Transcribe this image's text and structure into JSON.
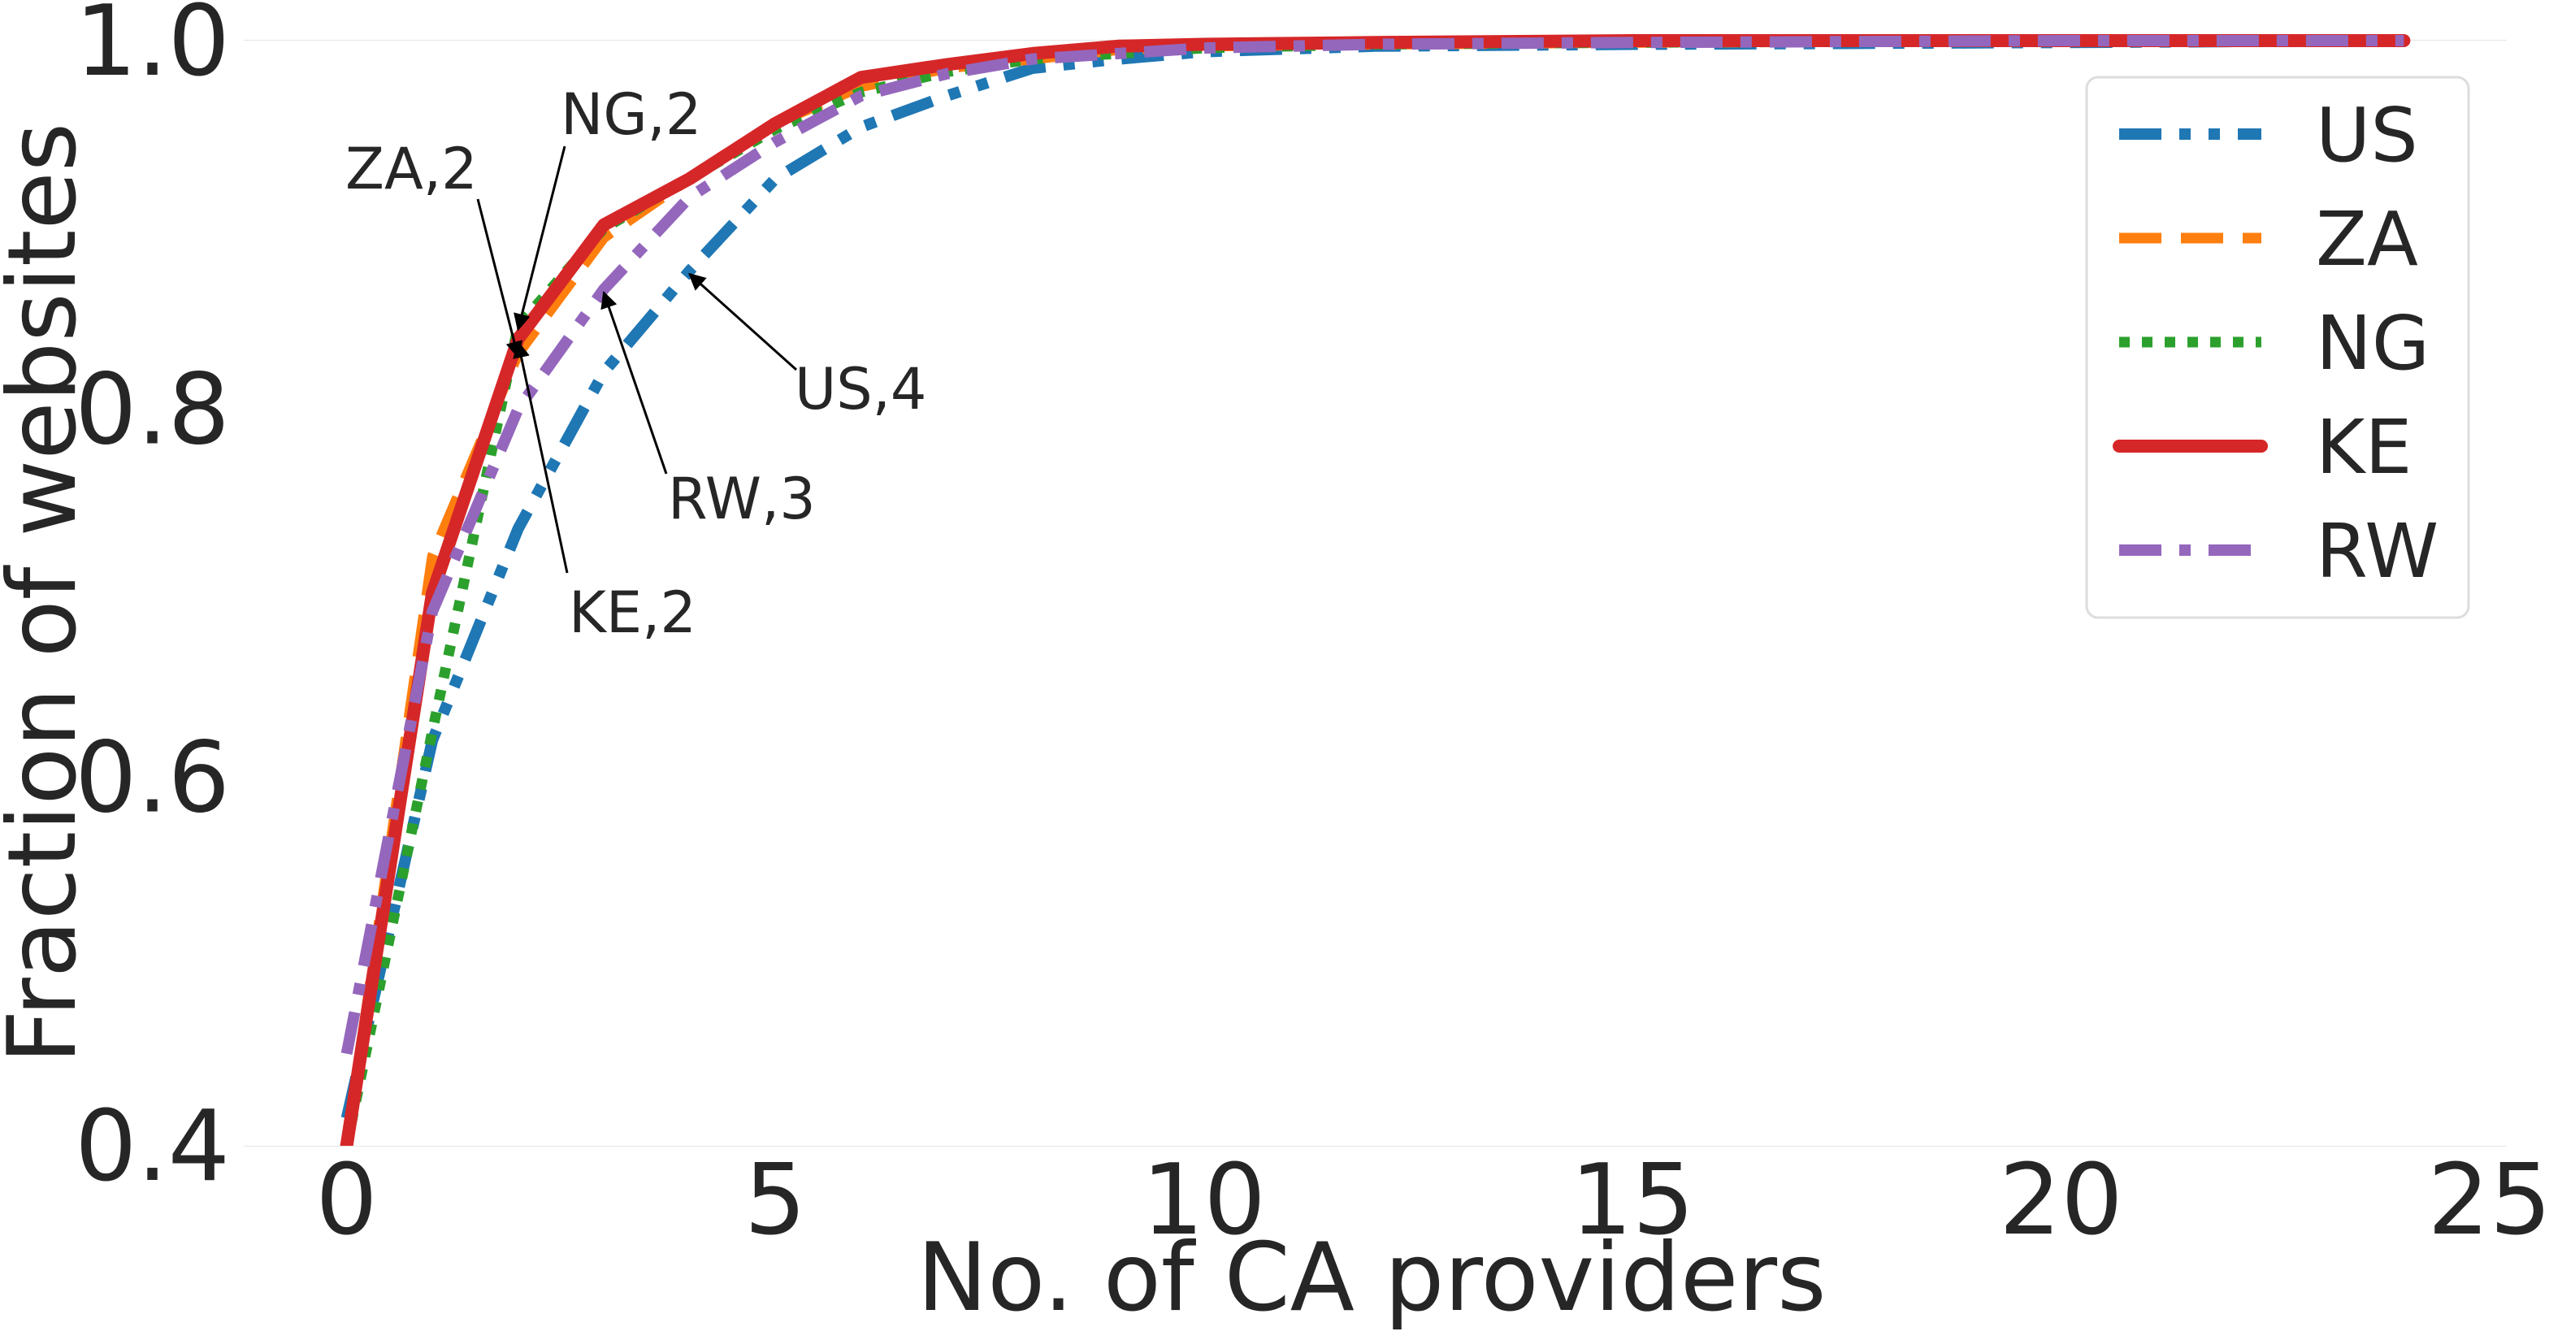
{
  "chart_data": {
    "type": "line",
    "xlabel": "No. of CA providers",
    "ylabel": "Fraction of websites",
    "xlim": [
      -1.2,
      25.2
    ],
    "ylim": [
      0.4,
      1.0
    ],
    "xticks": [
      0,
      5,
      10,
      15,
      20,
      25
    ],
    "yticks": [
      0.4,
      0.6,
      0.8,
      1.0
    ],
    "xtick_labels": [
      "0",
      "5",
      "10",
      "15",
      "20",
      "25"
    ],
    "ytick_labels": [
      "0.4",
      "0.6",
      "0.8",
      "1.0"
    ],
    "grid": true,
    "legend_position": "top-right",
    "series": [
      {
        "name": "US",
        "color": "#1f77b4",
        "style": "dashdotdot",
        "x": [
          0,
          1,
          2,
          3,
          4,
          5,
          6,
          7,
          8,
          9,
          10,
          12,
          15,
          20,
          24
        ],
        "y": [
          0.415,
          0.62,
          0.735,
          0.82,
          0.875,
          0.925,
          0.953,
          0.97,
          0.985,
          0.99,
          0.994,
          0.997,
          0.998,
          0.999,
          1.0
        ]
      },
      {
        "name": "ZA",
        "color": "#ff7f0e",
        "style": "dashed",
        "x": [
          0,
          1,
          2,
          3,
          4,
          5,
          6,
          7,
          8,
          9,
          10,
          12,
          15,
          20,
          24
        ],
        "y": [
          0.4,
          0.72,
          0.83,
          0.893,
          0.925,
          0.955,
          0.975,
          0.985,
          0.99,
          0.995,
          0.997,
          0.998,
          0.999,
          1.0,
          1.0
        ]
      },
      {
        "name": "NG",
        "color": "#2ca02c",
        "style": "dotted",
        "x": [
          0,
          1,
          2,
          3,
          4,
          5,
          6,
          7,
          8,
          9,
          10,
          12,
          15,
          20,
          24
        ],
        "y": [
          0.4,
          0.625,
          0.845,
          0.898,
          0.925,
          0.952,
          0.972,
          0.983,
          0.99,
          0.993,
          0.996,
          0.998,
          0.999,
          1.0,
          1.0
        ]
      },
      {
        "name": "KE",
        "color": "#d62728",
        "style": "solid",
        "x": [
          0,
          1,
          2,
          3,
          4,
          5,
          6,
          7,
          8,
          9,
          10,
          12,
          15,
          20,
          24
        ],
        "y": [
          0.4,
          0.7,
          0.838,
          0.9,
          0.925,
          0.955,
          0.98,
          0.987,
          0.993,
          0.997,
          0.998,
          0.999,
          1.0,
          1.0,
          1.0
        ]
      },
      {
        "name": "RW",
        "color": "#9467bd",
        "style": "dashdot",
        "x": [
          0,
          1,
          2,
          3,
          4,
          5,
          6,
          7,
          8,
          9,
          10,
          12,
          15,
          20,
          24
        ],
        "y": [
          0.45,
          0.69,
          0.8,
          0.865,
          0.915,
          0.945,
          0.97,
          0.982,
          0.99,
          0.993,
          0.996,
          0.998,
          0.999,
          1.0,
          1.0
        ]
      }
    ],
    "annotations": [
      {
        "text": "ZA,2",
        "x": 2,
        "y": 0.83
      },
      {
        "text": "NG,2",
        "x": 2,
        "y": 0.845
      },
      {
        "text": "US,4",
        "x": 4,
        "y": 0.875
      },
      {
        "text": "RW,3",
        "x": 3,
        "y": 0.865
      },
      {
        "text": "KE,2",
        "x": 2,
        "y": 0.838
      }
    ]
  }
}
